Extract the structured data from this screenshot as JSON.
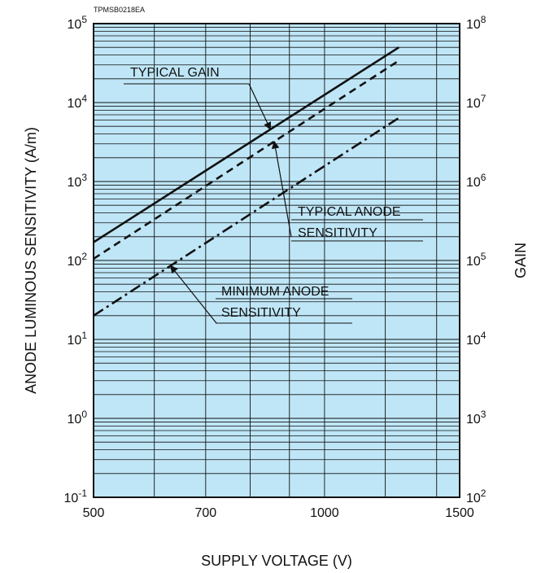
{
  "chart_data": {
    "type": "line",
    "code": "TPMSB0218EA",
    "xlabel": "SUPPLY VOLTAGE (V)",
    "ylabel": "ANODE LUMINOUS SENSITIVITY (A/m)",
    "y2label": "GAIN",
    "x_scale": "log",
    "y_scale": "log",
    "xlim": [
      500,
      1500
    ],
    "ylim": [
      0.1,
      100000
    ],
    "y2lim": [
      100,
      100000000
    ],
    "grid": true,
    "background_color": "#bfe6f7",
    "grid_color": "#111111",
    "x_ticks": [
      {
        "value": 500,
        "label": "500"
      },
      {
        "value": 700,
        "label": "700"
      },
      {
        "value": 1000,
        "label": "1000"
      },
      {
        "value": 1500,
        "label": "1500"
      }
    ],
    "y_ticks": [
      {
        "value": 0.1,
        "base": "10",
        "exp": "-1"
      },
      {
        "value": 1,
        "base": "10",
        "exp": "0"
      },
      {
        "value": 10,
        "base": "10",
        "exp": "1"
      },
      {
        "value": 100,
        "base": "10",
        "exp": "2"
      },
      {
        "value": 1000,
        "base": "10",
        "exp": "3"
      },
      {
        "value": 10000,
        "base": "10",
        "exp": "4"
      },
      {
        "value": 100000,
        "base": "10",
        "exp": "5"
      }
    ],
    "y2_ticks": [
      {
        "value": 100,
        "base": "10",
        "exp": "2"
      },
      {
        "value": 1000,
        "base": "10",
        "exp": "3"
      },
      {
        "value": 10000,
        "base": "10",
        "exp": "4"
      },
      {
        "value": 100000,
        "base": "10",
        "exp": "5"
      },
      {
        "value": 1000000,
        "base": "10",
        "exp": "6"
      },
      {
        "value": 10000000,
        "base": "10",
        "exp": "7"
      },
      {
        "value": 100000000,
        "base": "10",
        "exp": "8"
      }
    ],
    "series": [
      {
        "name": "TYPICAL GAIN",
        "axis": "right",
        "style": "solid",
        "x": [
          500,
          1250
        ],
        "y": [
          170000,
          50000000
        ]
      },
      {
        "name": "TYPICAL ANODE SENSITIVITY",
        "axis": "left",
        "style": "dashed",
        "x": [
          500,
          1250
        ],
        "y": [
          105,
          34000
        ]
      },
      {
        "name": "MINIMUM ANODE SENSITIVITY",
        "axis": "left",
        "style": "dashdot",
        "x": [
          500,
          1250
        ],
        "y": [
          20,
          6400
        ]
      }
    ],
    "annotations": [
      {
        "lines": [
          "TYPICAL GAIN"
        ],
        "series": 0,
        "arrow_to_x": 850
      },
      {
        "lines": [
          "TYPICAL ANODE",
          "SENSITIVITY"
        ],
        "series": 1,
        "arrow_to_x": 860
      },
      {
        "lines": [
          "MINIMUM ANODE",
          "SENSITIVITY"
        ],
        "series": 2,
        "arrow_to_x": 630
      }
    ]
  }
}
